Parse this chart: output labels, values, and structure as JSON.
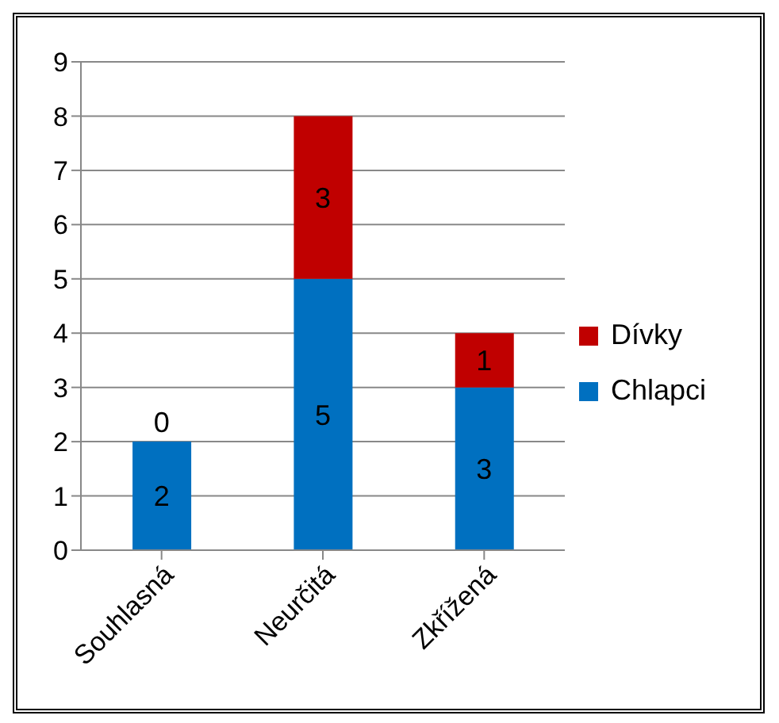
{
  "chart_data": {
    "type": "bar",
    "stacked": true,
    "categories": [
      "Souhlasná",
      "Neurčitá",
      "Zkřížená"
    ],
    "series": [
      {
        "name": "Chlapci",
        "color": "#0070c0",
        "values": [
          2,
          5,
          3
        ]
      },
      {
        "name": "Dívky",
        "color": "#c00000",
        "values": [
          0,
          3,
          1
        ]
      }
    ],
    "ylim": [
      0,
      9
    ],
    "yticks": [
      0,
      1,
      2,
      3,
      4,
      5,
      6,
      7,
      8,
      9
    ],
    "grid": "y",
    "legend": "right",
    "data_labels": true
  }
}
